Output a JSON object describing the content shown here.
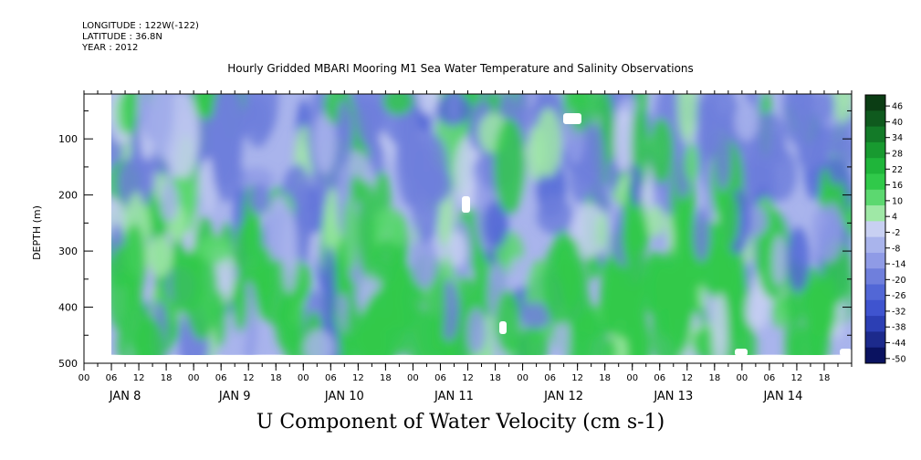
{
  "meta": {
    "longitude": "LONGITUDE : 122W(-122)",
    "latitude": "LATITUDE : 36.8N",
    "year": "YEAR : 2012"
  },
  "chart_data": {
    "type": "heatmap",
    "title": "Hourly Gridded MBARI Mooring M1 Sea Water Temperature and Salinity Observations",
    "variable": "U Component of Water Velocity (cm s-1)",
    "ylabel": "DEPTH (m)",
    "ylim": [
      500,
      20
    ],
    "y_ticks": [
      100,
      200,
      300,
      400,
      500
    ],
    "y_tick_labels": [
      "100",
      "200",
      "300",
      "400",
      "500"
    ],
    "hour_tick_labels": [
      "00",
      "06",
      "12",
      "18",
      "00",
      "06",
      "12",
      "18",
      "00",
      "06",
      "12",
      "18",
      "00",
      "06",
      "12",
      "18",
      "00",
      "06",
      "12",
      "18",
      "00",
      "06",
      "12",
      "18",
      "00",
      "06",
      "12",
      "18"
    ],
    "day_labels": [
      "JAN  8",
      "JAN  9",
      "JAN 10",
      "JAN 11",
      "JAN 12",
      "JAN 13",
      "JAN 14"
    ],
    "time_start_hour": 0,
    "time_span_hours": 168,
    "data_start_hour": 6,
    "depth_top": 20,
    "depth_bottom": 485,
    "colorbar": {
      "levels": [
        46,
        40,
        34,
        28,
        22,
        16,
        10,
        4,
        -2,
        -8,
        -14,
        -20,
        -26,
        -32,
        -38,
        -44,
        -50
      ],
      "colors": [
        "#0b3d14",
        "#0f5a1e",
        "#137a28",
        "#189a30",
        "#1fb53a",
        "#30c94a",
        "#5cd870",
        "#9fe8a6",
        "#c8d0f2",
        "#a9b4ec",
        "#8f9be6",
        "#6f7fdc",
        "#5267d6",
        "#3f54cf",
        "#2c3fb4",
        "#1c2a8c",
        "#0a1260"
      ]
    },
    "grid": false
  }
}
